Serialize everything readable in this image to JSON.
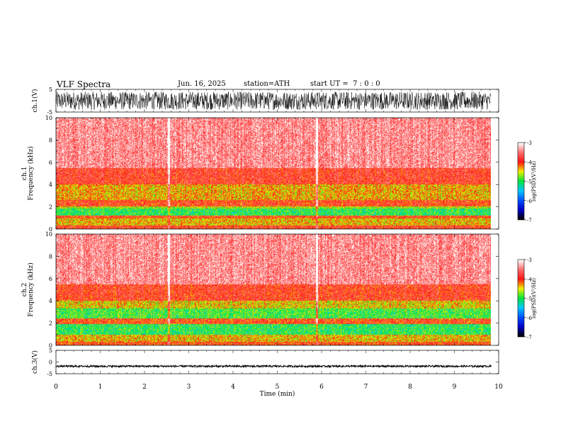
{
  "header": {
    "title": "VLF Spectra",
    "date": "Jun. 16, 2025",
    "station": "station=ATH",
    "start": "start UT =  7 : 0 : 0"
  },
  "chart_data": [
    {
      "type": "line",
      "name": "ch1-waveform",
      "ylabel": "ch.1(V)",
      "ylim": [
        -5,
        5
      ],
      "yticks": [
        "5",
        "-5"
      ],
      "amplitude_range": [
        -4,
        4
      ],
      "xlim": [
        0,
        9.83
      ]
    },
    {
      "type": "heatmap",
      "name": "ch1-spectrogram",
      "ylabel_channel": "ch.1",
      "ylabel": "Frequency (kHz)",
      "ylim": [
        0,
        10
      ],
      "yticks": [
        "0",
        "2",
        "4",
        "6",
        "8",
        "10"
      ],
      "xlim": [
        0,
        9.83
      ],
      "bands": [
        {
          "from": 0,
          "to": 0.3,
          "level": -3.9
        },
        {
          "from": 0.3,
          "to": 0.9,
          "level": -4.4
        },
        {
          "from": 0.9,
          "to": 1.2,
          "level": -4.0
        },
        {
          "from": 1.2,
          "to": 1.8,
          "level": -5.0
        },
        {
          "from": 1.8,
          "to": 2.0,
          "level": -4.6
        },
        {
          "from": 2.0,
          "to": 2.6,
          "level": -3.95
        },
        {
          "from": 2.6,
          "to": 4.0,
          "level": -4.35
        },
        {
          "from": 4.0,
          "to": 5.5,
          "level": -3.85
        },
        {
          "from": 5.5,
          "to": 10,
          "level": -3.4
        }
      ],
      "spike_times_min": [
        2.55,
        5.9
      ],
      "colorbar": {
        "ticks": [
          "-3",
          "-4",
          "-5",
          "-6",
          "-7"
        ],
        "label": "log(PSD)(V²/Hz)",
        "range": [
          -7,
          -3
        ]
      }
    },
    {
      "type": "heatmap",
      "name": "ch2-spectrogram",
      "ylabel_channel": "ch.2",
      "ylabel": "Frequency (kHz)",
      "ylim": [
        0,
        10
      ],
      "yticks": [
        "0",
        "2",
        "4",
        "6",
        "8",
        "10"
      ],
      "xlim": [
        0,
        9.83
      ],
      "bands": [
        {
          "from": 0,
          "to": 0.3,
          "level": -4.0
        },
        {
          "from": 0.3,
          "to": 0.9,
          "level": -4.4
        },
        {
          "from": 0.9,
          "to": 1.9,
          "level": -5.0
        },
        {
          "from": 1.9,
          "to": 2.4,
          "level": -4.0
        },
        {
          "from": 2.4,
          "to": 3.3,
          "level": -4.9
        },
        {
          "from": 3.3,
          "to": 4.0,
          "level": -4.45
        },
        {
          "from": 4.0,
          "to": 5.5,
          "level": -3.9
        },
        {
          "from": 5.5,
          "to": 10,
          "level": -3.4
        }
      ],
      "spike_times_min": [
        2.55,
        5.9
      ],
      "colorbar": {
        "ticks": [
          "-3",
          "-4",
          "-5",
          "-6",
          "-7"
        ],
        "label": "log(PSD)(V²/Hz)",
        "range": [
          -7,
          -3
        ]
      }
    },
    {
      "type": "line",
      "name": "ch3-waveform",
      "ylabel": "ch.3(V)",
      "ylim": [
        -5,
        5
      ],
      "yticks": [
        "5",
        "0",
        "-5"
      ],
      "amplitude_range": [
        -2.2,
        -1.4
      ],
      "xlim": [
        0,
        9.83
      ]
    }
  ],
  "xaxis": {
    "label": "Time (min)",
    "ticks": [
      "0",
      "1",
      "2",
      "3",
      "4",
      "5",
      "6",
      "7",
      "8",
      "9",
      "10"
    ],
    "range": [
      0,
      10
    ]
  }
}
